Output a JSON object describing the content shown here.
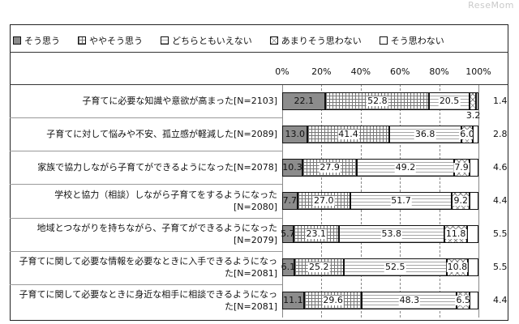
{
  "watermark": "ReseMom",
  "chart_data": {
    "type": "bar",
    "orientation": "horizontal-stacked-100",
    "legend_position": "top",
    "grid": true,
    "xlim": [
      0,
      100
    ],
    "ticks": [
      "0%",
      "20%",
      "40%",
      "60%",
      "80%",
      "100%"
    ],
    "series": [
      {
        "name": "そう思う",
        "color": "#8c8c8c",
        "pattern": "solid"
      },
      {
        "name": "ややそう思う",
        "color": "#ffffff",
        "pattern": "grid"
      },
      {
        "name": "どちらともいえない",
        "color": "#ffffff",
        "pattern": "hlines"
      },
      {
        "name": "あまりそう思わない",
        "color": "#ffffff",
        "pattern": "cross"
      },
      {
        "name": "そう思わない",
        "color": "#ffffff",
        "pattern": "plain"
      }
    ],
    "categories": [
      {
        "label": "子育てに必要な知識や意欲が高まった[N=2103]",
        "values": [
          22.1,
          52.8,
          20.5,
          3.2,
          1.4
        ],
        "labels": [
          "22.1",
          "52.8",
          "20.5",
          "3.2",
          "1.4"
        ]
      },
      {
        "label": "子育てに対して悩みや不安、孤立感が軽減した[N=2089]",
        "values": [
          13.0,
          41.4,
          36.8,
          6.0,
          2.8
        ],
        "labels": [
          "13.0",
          "41.4",
          "36.8",
          "6.0",
          "2.8"
        ]
      },
      {
        "label": "家族で協力しながら子育てができるようになった[N=2078]",
        "values": [
          10.3,
          27.9,
          49.2,
          7.9,
          4.6
        ],
        "labels": [
          "10.3",
          "27.9",
          "49.2",
          "7.9",
          "4.6"
        ]
      },
      {
        "label": "学校と協力（相談）しながら子育てをするようになった[N=2080]",
        "values": [
          7.7,
          27.0,
          51.7,
          9.2,
          4.4
        ],
        "labels": [
          "7.7",
          "27.0",
          "51.7",
          "9.2",
          "4.4"
        ]
      },
      {
        "label": "地域とつながりを持ちながら、子育てができるようになった[N=2079]",
        "values": [
          5.7,
          23.1,
          53.8,
          11.8,
          5.5
        ],
        "labels": [
          "5.7",
          "23.1",
          "53.8",
          "11.8",
          "5.5"
        ]
      },
      {
        "label": "子育てに関して必要な情報を必要なときに入手できるようになった[N=2081]",
        "values": [
          6.1,
          25.2,
          52.5,
          10.8,
          5.5
        ],
        "labels": [
          "6.1",
          "25.2",
          "52.5",
          "10.8",
          "5.5"
        ]
      },
      {
        "label": "子育てに関して必要なときに身近な相手に相談できるようになった[N=2081]",
        "values": [
          11.1,
          29.6,
          48.3,
          6.5,
          4.4
        ],
        "labels": [
          "11.1",
          "29.6",
          "48.3",
          "6.5",
          "4.4"
        ]
      }
    ]
  }
}
